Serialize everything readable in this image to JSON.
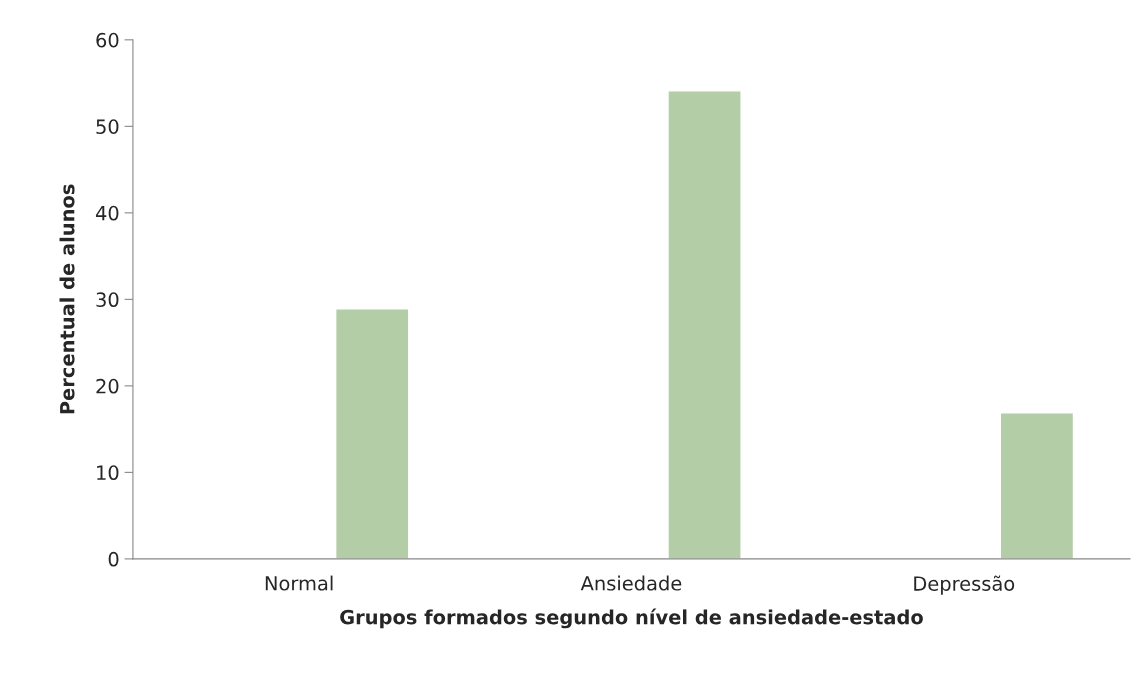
{
  "chart_data": {
    "type": "bar",
    "xlabel": "Grupos formados segundo nível de ansiedade-estado",
    "ylabel": "Percentual de alunos",
    "categories": [
      "Normal",
      "Ansiedade",
      "Depressão"
    ],
    "series": [
      {
        "values": [
          null,
          null,
          null
        ]
      },
      {
        "color": "#b3cda6",
        "values": [
          28.9,
          54.1,
          16.9
        ]
      }
    ],
    "ylim": [
      0,
      60
    ],
    "yticks": [
      0,
      10,
      20,
      30,
      40,
      50,
      60
    ],
    "grid": false,
    "legend": false
  }
}
